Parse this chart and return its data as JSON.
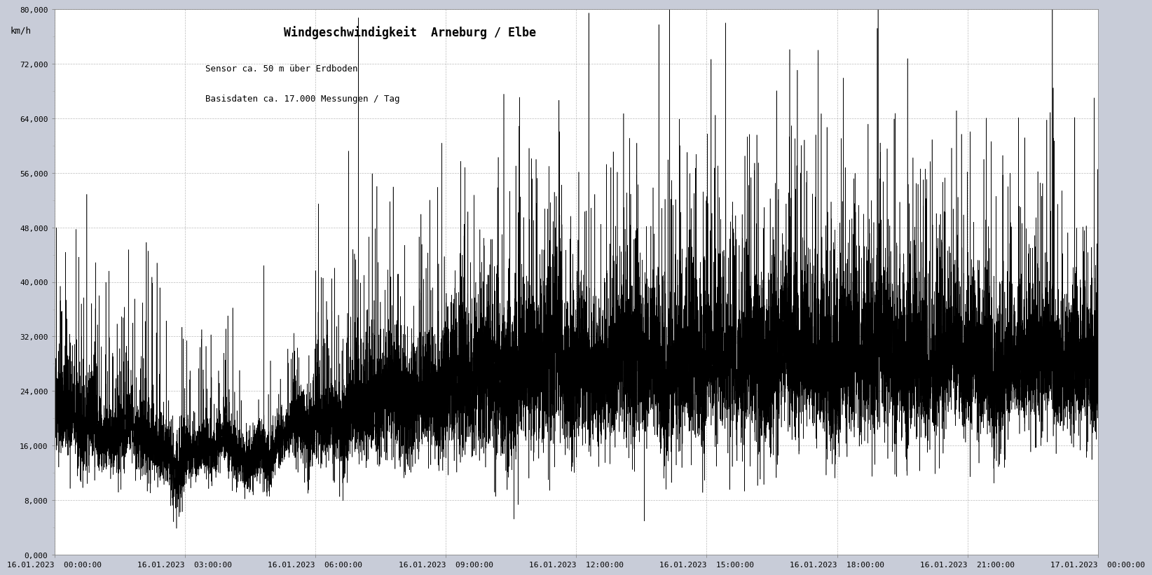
{
  "title": "Windgeschwindigkeit  Arneburg / Elbe",
  "subtitle_line1": "Sensor ca. 50 m über Erdboden",
  "subtitle_line2": "Basisdaten ca. 17.000 Messungen / Tag",
  "ylabel": "km/h",
  "ymin": 0,
  "ymax": 80000,
  "yticks": [
    0,
    8000,
    16000,
    24000,
    32000,
    40000,
    48000,
    56000,
    64000,
    72000,
    80000
  ],
  "ytick_labels": [
    "0,000",
    "8,000",
    "16,000",
    "24,000",
    "32,000",
    "40,000",
    "48,000",
    "56,000",
    "64,000",
    "72,000",
    "80,000"
  ],
  "xtick_labels": [
    "16.01.2023  00:00:00",
    "16.01.2023  03:00:00",
    "16.01.2023  06:00:00",
    "16.01.2023  09:00:00",
    "16.01.2023  12:00:00",
    "16.01.2023  15:00:00",
    "16.01.2023  18:00:00",
    "16.01.2023  21:00:00",
    "17.01.2023  00:00:00"
  ],
  "num_points": 17280,
  "line_color": "#000000",
  "background_color": "#c8ccd8",
  "plot_bg_color": "#ffffff",
  "grid_color": "#aaaaaa",
  "title_fontsize": 12,
  "subtitle_fontsize": 9,
  "tick_fontsize": 8,
  "ylabel_fontsize": 9,
  "seed": 42
}
